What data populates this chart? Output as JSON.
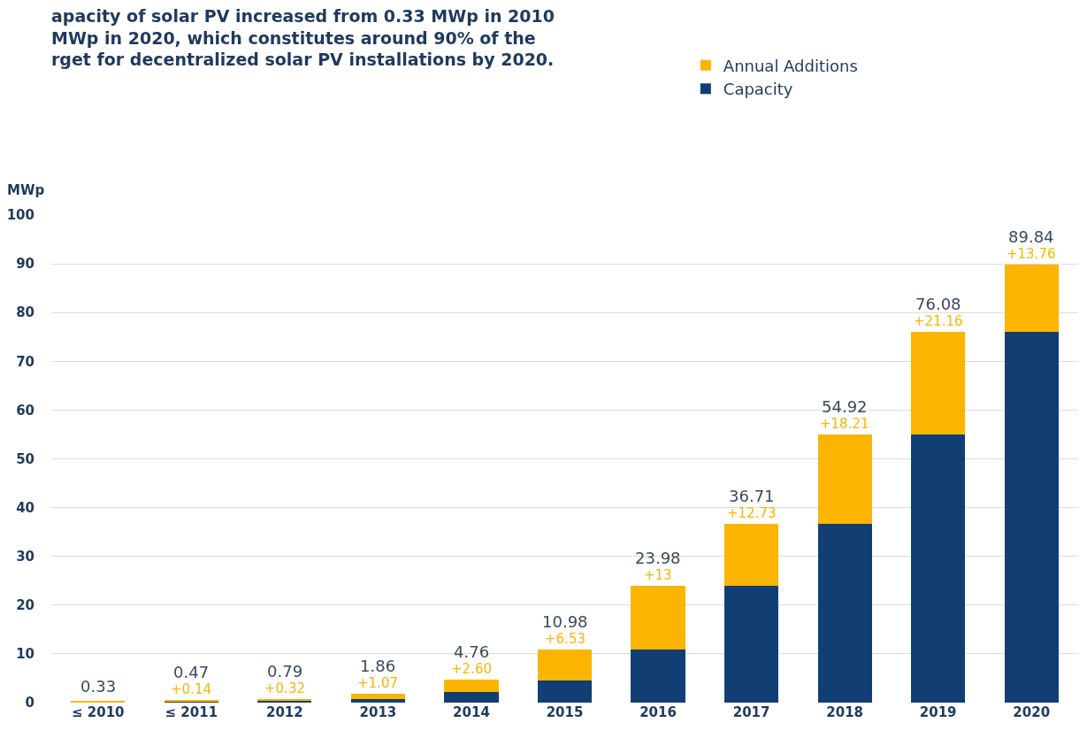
{
  "chart_data": {
    "type": "bar",
    "stacked": true,
    "title": "apacity of solar PV increased from 0.33 MWp in 2010\nMWp in 2020, which constitutes around 90% of the\nrget for decentralized solar PV installations by 2020.",
    "ylabel": "MWp",
    "categories": [
      "≤ 2010",
      "≤ 2011",
      "2012",
      "2013",
      "2014",
      "2015",
      "2016",
      "2017",
      "2018",
      "2019",
      "2020"
    ],
    "series": [
      {
        "name": "Capacity",
        "color": "#123f73",
        "values": [
          null,
          0.33,
          0.47,
          0.79,
          2.16,
          4.45,
          10.98,
          23.98,
          36.71,
          54.92,
          76.08
        ]
      },
      {
        "name": "Annual Additions",
        "color": "#fbb500",
        "values": [
          0.33,
          0.14,
          0.32,
          1.07,
          2.6,
          6.53,
          13,
          12.73,
          18.21,
          21.16,
          13.76
        ],
        "value_labels": [
          null,
          "+0.14",
          "+0.32",
          "+1.07",
          "+2.60",
          "+6.53",
          "+13",
          "+12.73",
          "+18.21",
          "+21.16",
          "+13.76"
        ]
      }
    ],
    "totals": [
      "0.33",
      "0.47",
      "0.79",
      "1.86",
      "4.76",
      "10.98",
      "23.98",
      "36.71",
      "54.92",
      "76.08",
      "89.84"
    ],
    "ylim": [
      0,
      100
    ],
    "yticks": [
      0,
      10,
      20,
      30,
      40,
      50,
      60,
      70,
      80,
      90,
      100
    ],
    "grid": "y",
    "legend": "top right"
  }
}
